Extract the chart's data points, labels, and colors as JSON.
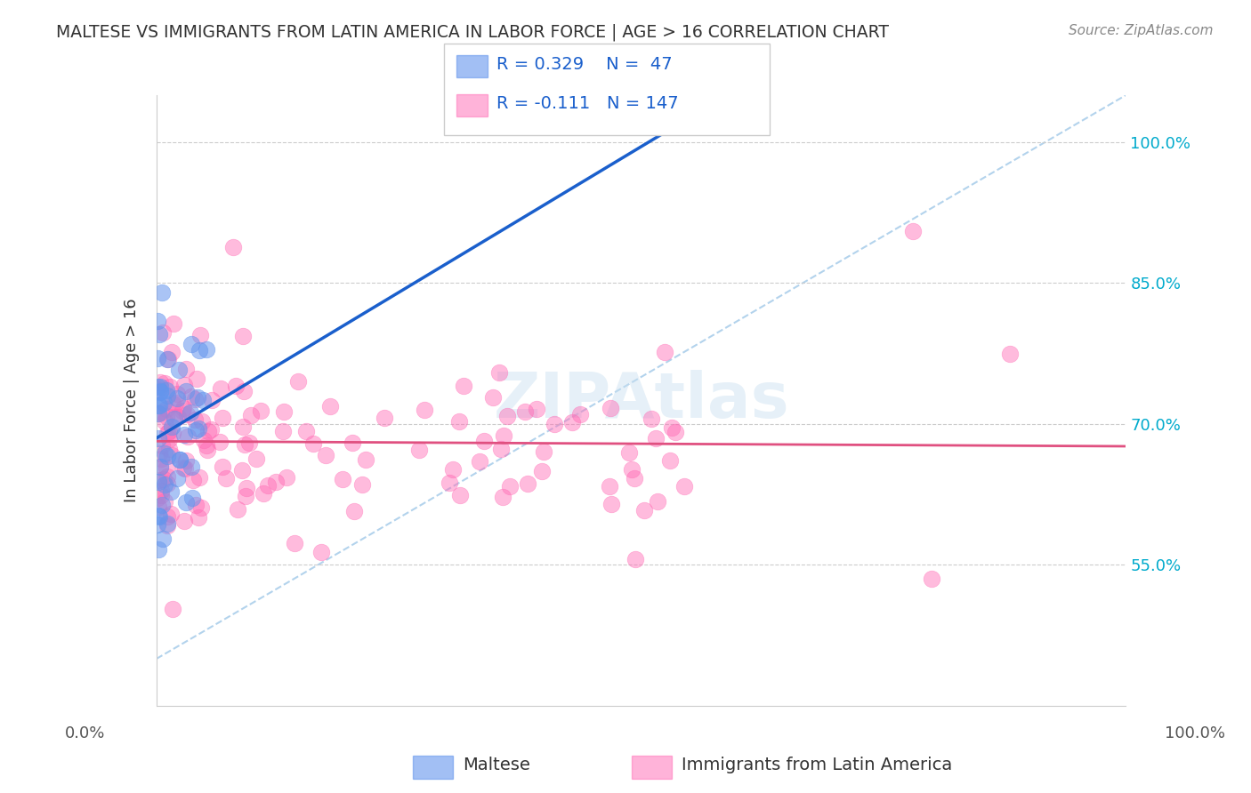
{
  "title": "MALTESE VS IMMIGRANTS FROM LATIN AMERICA IN LABOR FORCE | AGE > 16 CORRELATION CHART",
  "source": "Source: ZipAtlas.com",
  "ylabel": "In Labor Force | Age > 16",
  "legend_label1": "Maltese",
  "legend_label2": "Immigrants from Latin America",
  "legend_R1": "R = 0.329",
  "legend_N1": "N =  47",
  "legend_R2": "R = -0.111",
  "legend_N2": "N = 147",
  "color_blue": "#6495ED",
  "color_pink": "#FF69B4",
  "color_blue_line": "#1a5fcc",
  "color_pink_line": "#e05080",
  "color_dashed": "#a0c8e8",
  "watermark": "ZIPAtlas",
  "xlim": [
    0.0,
    1.0
  ],
  "ylim": [
    0.4,
    1.05
  ],
  "y_ticks": [
    0.55,
    0.7,
    0.85,
    1.0
  ],
  "y_tick_labels": [
    "55.0%",
    "70.0%",
    "85.0%",
    "100.0%"
  ],
  "dash_slope": 0.6,
  "dash_intercept": 0.45
}
